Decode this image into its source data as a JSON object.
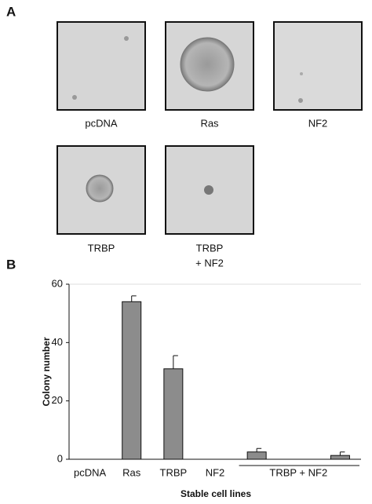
{
  "figure": {
    "panel_a": "A",
    "panel_b": "B",
    "images": [
      {
        "caption": [
          "pcDNA"
        ]
      },
      {
        "caption": [
          "Ras"
        ]
      },
      {
        "caption": [
          "NF2"
        ]
      },
      {
        "caption": [
          "TRBP"
        ]
      },
      {
        "caption": [
          "TRBP",
          "+ NF2"
        ]
      }
    ]
  },
  "chart_data": {
    "type": "bar",
    "x_label": "Stable cell lines",
    "y_label": "Colony number",
    "categories": [
      "pcDNA",
      "Ras",
      "TRBP",
      "NF2",
      null,
      "TRBP + NF2",
      null
    ],
    "values": [
      0,
      54,
      31,
      0,
      2.5,
      0,
      1.3
    ],
    "errors": [
      null,
      2,
      4.5,
      null,
      1.2,
      null,
      1.2
    ],
    "color": "#8c8c8c",
    "ylim": [
      0,
      60
    ],
    "yticks": [
      0,
      20,
      40,
      60
    ]
  }
}
